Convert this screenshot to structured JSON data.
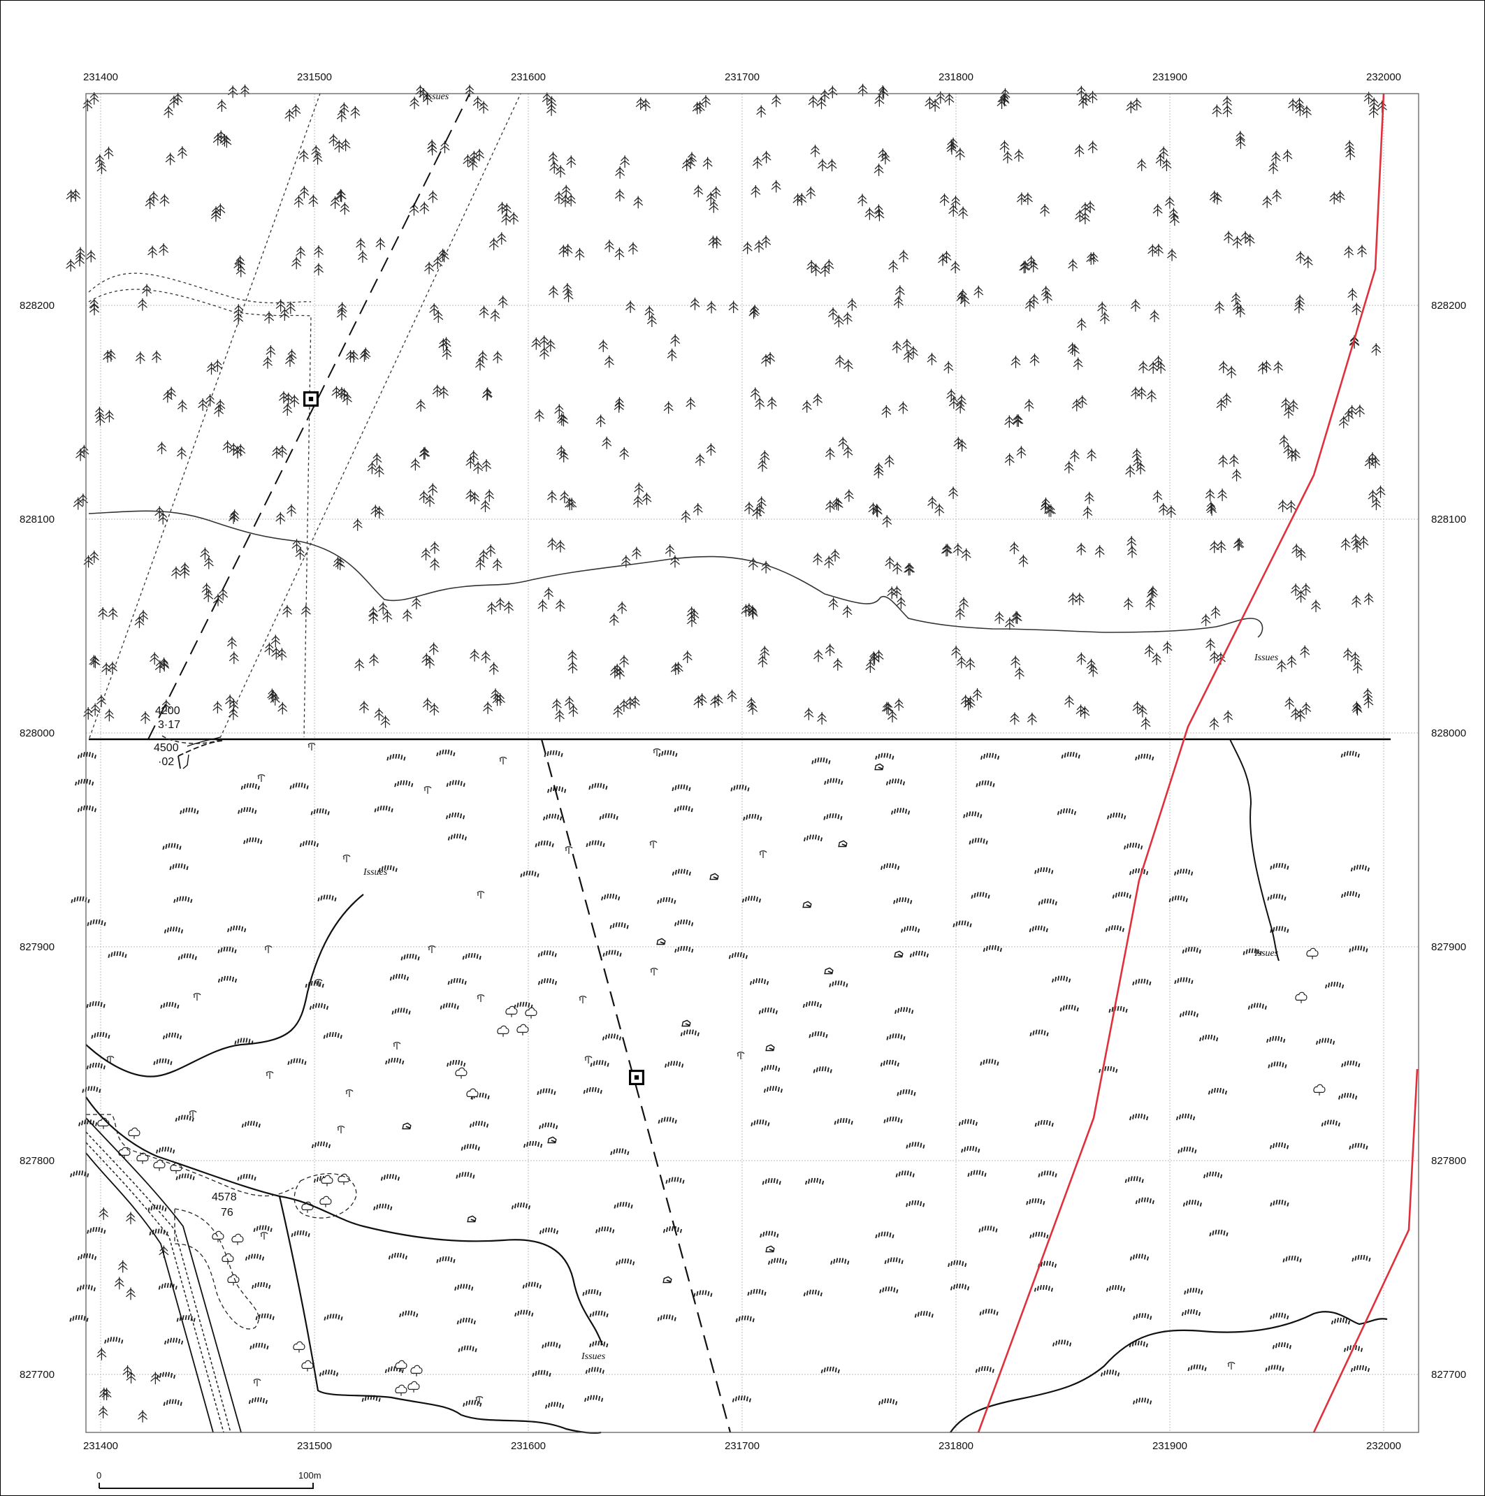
{
  "map": {
    "x_axis": {
      "ticks": [
        "231400",
        "231500",
        "231600",
        "231700",
        "231800",
        "231900",
        "232000"
      ]
    },
    "y_axis": {
      "ticks": [
        "828200",
        "828100",
        "828000",
        "827900",
        "827800",
        "827700"
      ]
    },
    "labels": {
      "issues": "Issues"
    },
    "spot_heights": [
      {
        "value": "4200",
        "sub": "3·17"
      },
      {
        "value": "4500",
        "sub": "·02"
      },
      {
        "value": "4578",
        "sub": "76"
      }
    ],
    "scale_bar": {
      "start": "0",
      "end": "100m"
    },
    "colors": {
      "boundary": "#e0303c",
      "ink": "#111111",
      "grid": "#bdbdbd"
    },
    "symbols": [
      "conifer-tree-symbol",
      "rough-pasture-symbol",
      "deciduous-tree-symbol",
      "boulder-symbol",
      "survey-marker-icon"
    ]
  }
}
